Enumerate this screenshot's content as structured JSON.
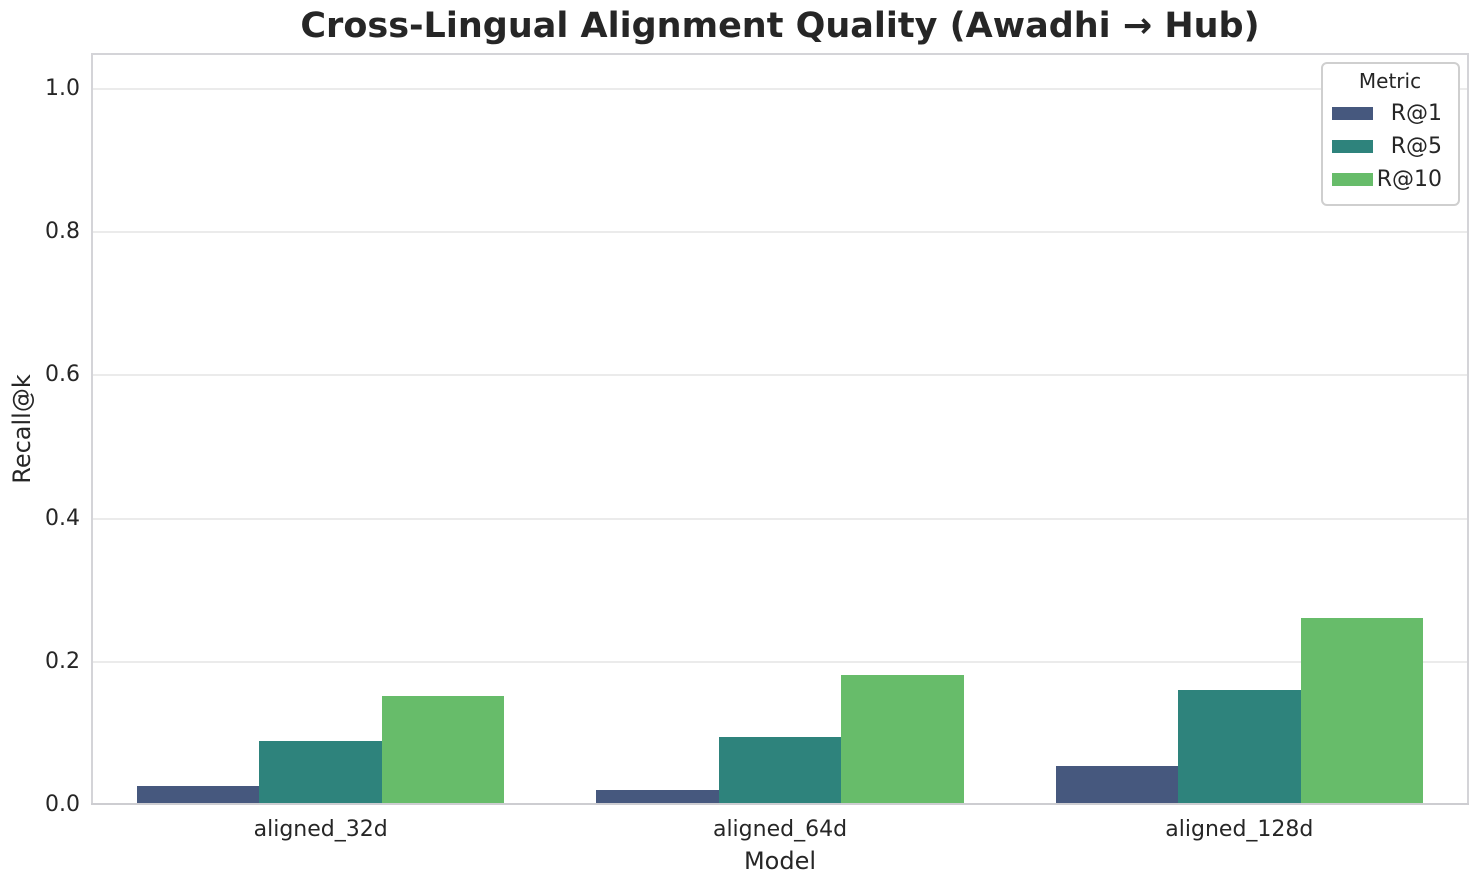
{
  "chart_data": {
    "type": "bar",
    "title": "Cross-Lingual Alignment Quality (Awadhi → Hub)",
    "xlabel": "Model",
    "ylabel": "Recall@k",
    "categories": [
      "aligned_32d",
      "aligned_64d",
      "aligned_128d"
    ],
    "series": [
      {
        "name": "R@1",
        "color": "#46587e",
        "values": [
          0.027,
          0.021,
          0.055
        ]
      },
      {
        "name": "R@5",
        "color": "#2e837c",
        "values": [
          0.09,
          0.095,
          0.161
        ]
      },
      {
        "name": "R@10",
        "color": "#67bc6a",
        "values": [
          0.152,
          0.182,
          0.261
        ]
      }
    ],
    "ylim": [
      0,
      1.05
    ],
    "ytick_values": [
      0.0,
      0.2,
      0.4,
      0.6,
      0.8,
      1.0
    ],
    "grid": true,
    "legend": {
      "title": "Metric",
      "position": "upper right"
    }
  },
  "colors": {
    "text": "#262626",
    "gridline": "#ebebeb",
    "spine": "#d4d4d8",
    "background": "#ffffff"
  }
}
